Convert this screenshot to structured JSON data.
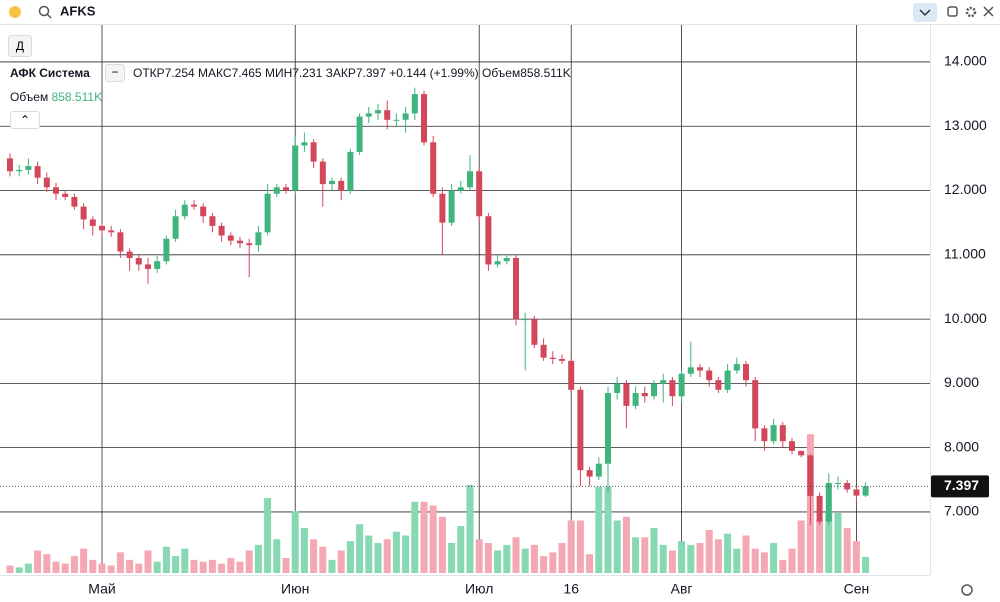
{
  "header": {
    "symbol": "AFKS",
    "interval": "Д"
  },
  "legend": {
    "name": "АФК Система",
    "open": "ОТКР",
    "high": "МАКС",
    "low": "МИН",
    "close": "ЗАКР",
    "change": "+0.144 (+1.99%)",
    "volume": "Объем",
    "volume_value": "858.511K"
  },
  "chart_data": {
    "type": "candlestick",
    "categories": [
      null,
      null,
      null,
      null,
      null,
      null,
      null,
      null,
      null,
      null,
      "Май",
      null,
      null,
      null,
      null,
      null,
      null,
      null,
      null,
      null,
      null,
      null,
      null,
      null,
      null,
      null,
      null,
      null,
      null,
      null,
      null,
      "Июн",
      null,
      null,
      null,
      null,
      null,
      null,
      null,
      null,
      null,
      null,
      null,
      null,
      null,
      null,
      null,
      null,
      null,
      null,
      null,
      "Июл",
      null,
      null,
      null,
      null,
      null,
      null,
      null,
      null,
      null,
      "16",
      null,
      null,
      null,
      null,
      null,
      null,
      null,
      null,
      null,
      null,
      null,
      "Авг",
      null,
      null,
      null,
      null,
      null,
      null,
      null,
      null,
      null,
      null,
      null,
      null,
      null,
      null,
      null,
      null,
      null,
      null,
      "Сен",
      null
    ],
    "open": [
      12.5,
      12.3,
      12.32,
      12.38,
      12.2,
      12.05,
      11.95,
      11.9,
      11.75,
      11.55,
      11.45,
      11.38,
      11.35,
      11.05,
      10.95,
      10.85,
      10.78,
      10.9,
      11.25,
      11.6,
      11.78,
      11.75,
      11.6,
      11.45,
      11.3,
      11.22,
      11.18,
      11.15,
      11.35,
      11.95,
      12.05,
      12.0,
      12.7,
      12.75,
      12.45,
      12.1,
      12.15,
      12.0,
      12.6,
      13.15,
      13.2,
      13.25,
      13.1,
      13.1,
      13.2,
      13.5,
      12.75,
      11.95,
      11.5,
      12.0,
      12.05,
      12.3,
      11.6,
      10.85,
      10.9,
      10.95,
      10.0,
      10.0,
      9.6,
      9.4,
      9.38,
      9.35,
      8.9,
      7.65,
      7.55,
      7.75,
      8.85,
      9.0,
      8.65,
      8.85,
      8.8,
      9.0,
      9.05,
      8.8,
      9.15,
      9.25,
      9.2,
      9.05,
      8.9,
      9.2,
      9.3,
      9.05,
      8.3,
      8.1,
      8.35,
      8.1,
      7.95,
      7.88,
      7.25,
      6.85,
      7.45,
      7.45,
      7.35,
      7.254
    ],
    "high": [
      12.58,
      12.4,
      12.5,
      12.45,
      12.28,
      12.12,
      12.0,
      11.95,
      11.8,
      11.6,
      11.48,
      11.45,
      11.4,
      11.1,
      11.0,
      10.95,
      10.98,
      11.3,
      11.7,
      11.85,
      11.85,
      11.8,
      11.65,
      11.5,
      11.35,
      11.28,
      11.25,
      11.45,
      12.1,
      12.1,
      12.1,
      12.85,
      12.9,
      12.8,
      12.5,
      12.2,
      12.2,
      12.65,
      13.2,
      13.3,
      13.35,
      13.4,
      13.2,
      13.3,
      13.6,
      13.55,
      12.85,
      12.05,
      12.1,
      12.15,
      12.55,
      12.35,
      11.65,
      11.0,
      11.0,
      11.0,
      10.1,
      10.05,
      9.7,
      9.5,
      9.45,
      9.4,
      8.95,
      7.7,
      7.85,
      8.95,
      9.1,
      9.05,
      8.95,
      8.95,
      9.05,
      9.15,
      9.1,
      9.2,
      9.65,
      9.3,
      9.25,
      9.1,
      9.3,
      9.4,
      9.35,
      9.1,
      8.35,
      8.45,
      8.4,
      8.15,
      7.95,
      7.9,
      7.3,
      7.6,
      7.55,
      7.5,
      7.4,
      7.465
    ],
    "low": [
      12.22,
      12.22,
      12.25,
      12.1,
      11.98,
      11.85,
      11.85,
      11.7,
      11.4,
      11.3,
      11.3,
      11.28,
      10.95,
      10.75,
      10.75,
      10.55,
      10.72,
      10.85,
      11.2,
      11.55,
      11.7,
      11.5,
      11.35,
      11.2,
      11.15,
      11.1,
      10.65,
      11.05,
      11.3,
      11.9,
      11.95,
      11.95,
      12.6,
      12.35,
      11.75,
      12.0,
      11.85,
      11.95,
      12.55,
      13.05,
      13.1,
      12.95,
      13.0,
      12.9,
      13.1,
      12.7,
      11.9,
      11.0,
      11.45,
      11.95,
      12.0,
      11.5,
      10.75,
      10.8,
      10.85,
      9.9,
      9.2,
      9.55,
      9.35,
      9.3,
      9.3,
      8.85,
      7.4,
      7.4,
      7.5,
      7.3,
      8.75,
      8.3,
      8.6,
      8.7,
      8.75,
      8.7,
      8.65,
      8.7,
      9.1,
      9.1,
      8.95,
      8.85,
      8.85,
      9.15,
      8.95,
      8.1,
      7.95,
      8.05,
      8.0,
      7.9,
      7.85,
      6.8,
      6.8,
      6.8,
      7.35,
      7.3,
      7.15,
      7.231
    ],
    "close": [
      12.3,
      12.32,
      12.38,
      12.2,
      12.05,
      11.95,
      11.9,
      11.75,
      11.55,
      11.45,
      11.38,
      11.35,
      11.05,
      10.95,
      10.85,
      10.78,
      10.9,
      11.25,
      11.6,
      11.78,
      11.75,
      11.6,
      11.45,
      11.3,
      11.22,
      11.18,
      11.15,
      11.35,
      11.95,
      12.05,
      12.0,
      12.7,
      12.75,
      12.45,
      12.1,
      12.15,
      12.0,
      12.6,
      13.15,
      13.2,
      13.25,
      13.1,
      13.1,
      13.2,
      13.5,
      12.75,
      11.95,
      11.5,
      12.0,
      12.05,
      12.3,
      11.6,
      10.85,
      10.9,
      10.95,
      10.0,
      10.0,
      9.6,
      9.4,
      9.38,
      9.35,
      8.9,
      7.65,
      7.55,
      7.75,
      8.85,
      9.0,
      8.65,
      8.85,
      8.8,
      9.0,
      9.05,
      8.8,
      9.15,
      9.25,
      9.2,
      9.05,
      8.9,
      9.2,
      9.3,
      9.05,
      8.3,
      8.1,
      8.35,
      8.1,
      7.95,
      7.88,
      7.25,
      6.85,
      7.45,
      7.45,
      7.35,
      7.254,
      7.397
    ],
    "volume": [
      400,
      300,
      500,
      1200,
      1000,
      600,
      500,
      900,
      1300,
      700,
      500,
      400,
      1100,
      700,
      500,
      1200,
      600,
      1400,
      900,
      1300,
      700,
      600,
      700,
      500,
      800,
      600,
      1200,
      1500,
      4000,
      1800,
      800,
      3300,
      2400,
      1800,
      1400,
      700,
      1200,
      1700,
      2600,
      2000,
      1600,
      1800,
      2200,
      2000,
      3800,
      3800,
      3600,
      3000,
      1600,
      2500,
      4700,
      1800,
      1600,
      1200,
      1500,
      1900,
      1300,
      1500,
      900,
      1100,
      1600,
      2800,
      2800,
      1000,
      4600,
      4600,
      2800,
      3000,
      1900,
      1900,
      2400,
      1500,
      1200,
      1700,
      1500,
      1600,
      2300,
      1800,
      2100,
      1300,
      2000,
      1300,
      1100,
      1600,
      700,
      1300,
      2800,
      7400,
      2800,
      3300,
      3200,
      2400,
      1700,
      858.511
    ],
    "ylim": [
      6.05,
      14.575
    ],
    "yticks": [
      {
        "value": 7,
        "label": "7.000"
      },
      {
        "value": 8,
        "label": "8.000"
      },
      {
        "value": 9,
        "label": "9.000"
      },
      {
        "value": 10,
        "label": "10.000"
      },
      {
        "value": 11,
        "label": "11.000"
      },
      {
        "value": 12,
        "label": "12.000"
      },
      {
        "value": 13,
        "label": "13.000"
      },
      {
        "value": 14,
        "label": "14.000"
      }
    ],
    "volume_ylim": [
      0,
      8000
    ],
    "grid": true,
    "colors": {
      "up": "#3fb47c",
      "down": "#d2475a",
      "volume_up": "#86d9b3",
      "volume_down": "#f4a8b3"
    }
  }
}
